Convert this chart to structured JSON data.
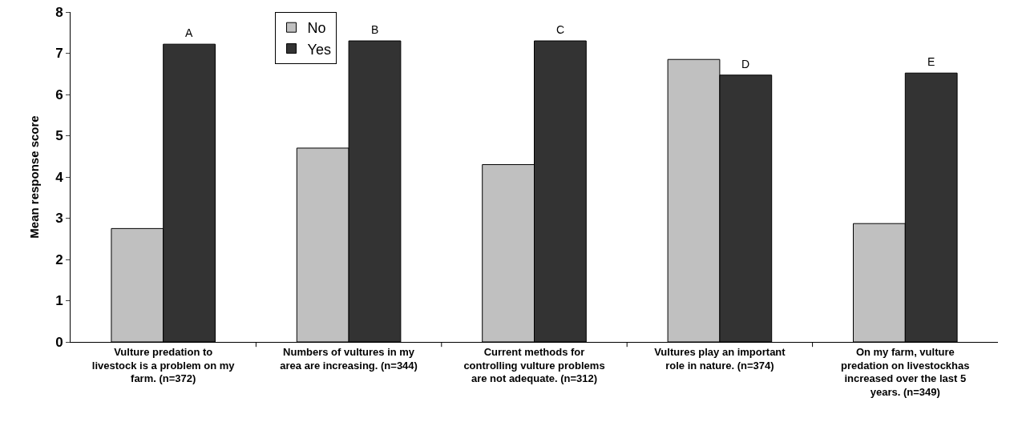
{
  "chart_data": {
    "type": "bar",
    "ylabel": "Mean response score",
    "categories": [
      "Vulture predation to livestock is a problem on my farm. (n=372)",
      "Numbers of vultures in my area are increasing. (n=344)",
      "Current methods for controlling vulture problems are not adequate. (n=312)",
      "Vultures play an important role in nature. (n=374)",
      "On my farm, vulture predation on livestockhas increased over the last 5 years. (n=349)"
    ],
    "series": [
      {
        "name": "No",
        "color": "#c0c0c0",
        "values": [
          2.75,
          4.7,
          4.3,
          6.85,
          2.87
        ]
      },
      {
        "name": "Yes",
        "color": "#333333",
        "values": [
          7.22,
          7.3,
          7.3,
          6.47,
          6.52
        ]
      }
    ],
    "annotations": [
      {
        "text": "A",
        "x": "Vulture predation to livestock is a problem on my farm. (n=372)",
        "y": 7.22
      },
      {
        "text": "B",
        "x": "Numbers of vultures in my area are increasing. (n=344)",
        "y": 7.3
      },
      {
        "text": "C",
        "x": "Current methods for controlling vulture problems are not adequate. (n=312)",
        "y": 7.3
      },
      {
        "text": "D",
        "x": "Vultures play an important role in nature. (n=374)",
        "y": 6.47
      },
      {
        "text": "E",
        "x": "On my farm, vulture predation on livestockhas increased over the last 5 years. (n=349)",
        "y": 6.52
      }
    ],
    "ylim": [
      0,
      8
    ],
    "yticks": [
      0,
      1,
      2,
      3,
      4,
      5,
      6,
      7,
      8
    ],
    "grid": false,
    "legend": "top left"
  }
}
